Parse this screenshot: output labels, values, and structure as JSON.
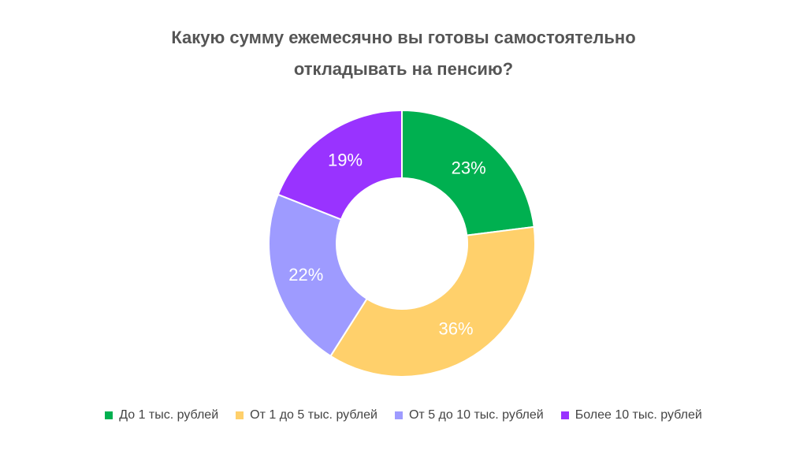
{
  "chart_data": {
    "type": "pie",
    "variant": "donut",
    "title_lines": [
      "Какую сумму ежемесячно вы готовы самостоятельно",
      "откладывать на пенсию?"
    ],
    "categories": [
      "До 1 тыс. рублей",
      "От 1 до 5 тыс. рублей",
      "От 5 до 10 тыс. рублей",
      "Более 10 тыс. рублей"
    ],
    "values": [
      23,
      36,
      22,
      19
    ],
    "labels": [
      "23%",
      "36%",
      "22%",
      "19%"
    ],
    "colors": [
      "#00b050",
      "#ffd06b",
      "#9e9bff",
      "#9933ff"
    ],
    "legend_position": "bottom"
  }
}
